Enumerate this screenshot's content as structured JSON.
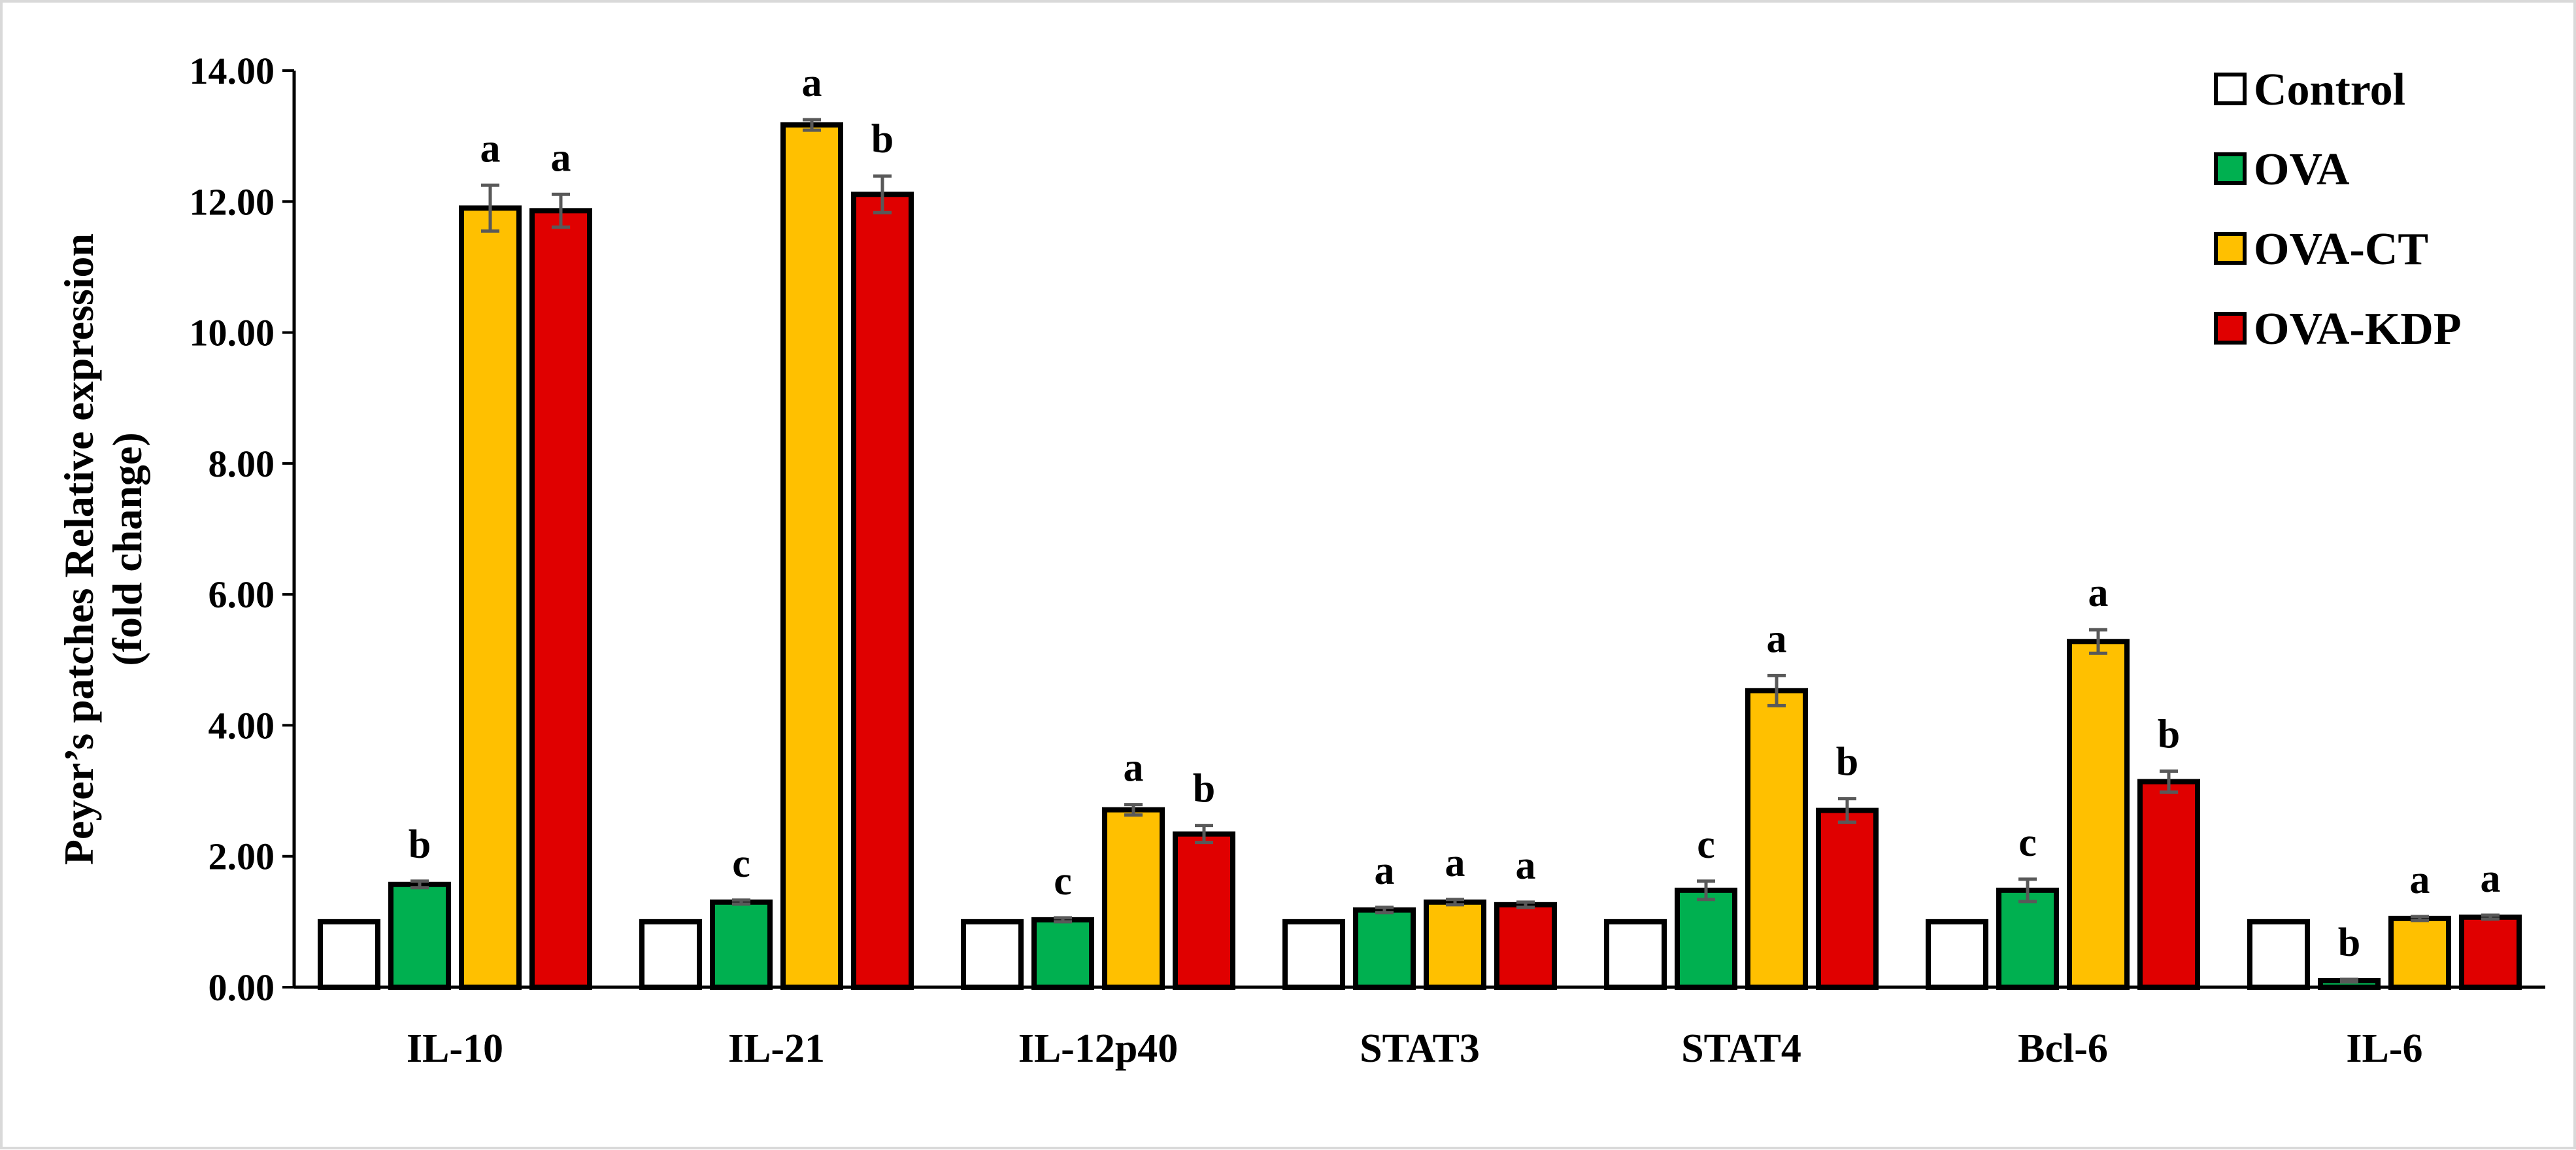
{
  "chart_data": {
    "type": "bar",
    "title": "",
    "xlabel": "",
    "ylabel_line1": "Peyer’s patches Relative expression",
    "ylabel_line2": "(fold change)",
    "ylim": [
      0,
      14
    ],
    "yticks": [
      0,
      2,
      4,
      6,
      8,
      10,
      12,
      14
    ],
    "ytick_labels": [
      "0.00",
      "2.00",
      "4.00",
      "6.00",
      "8.00",
      "10.00",
      "12.00",
      "14.00"
    ],
    "grid": false,
    "legend_position": "top-right",
    "categories": [
      "IL-10",
      "IL-21",
      "IL-12p40",
      "STAT3",
      "STAT4",
      "Bcl-6",
      "IL-6"
    ],
    "series": [
      {
        "name": "Control",
        "color": "#ffffff",
        "values": [
          1.0,
          1.0,
          1.0,
          1.0,
          1.0,
          1.0,
          1.0
        ],
        "errors": [
          0,
          0,
          0,
          0,
          0,
          0,
          0
        ],
        "labels": [
          "",
          "",
          "",
          "",
          "",
          "",
          ""
        ]
      },
      {
        "name": "OVA",
        "color": "#00b050",
        "values": [
          1.57,
          1.3,
          1.03,
          1.18,
          1.48,
          1.48,
          0.1
        ],
        "errors": [
          0.05,
          0.03,
          0.03,
          0.04,
          0.14,
          0.17,
          0.02
        ],
        "labels": [
          "b",
          "c",
          "c",
          "a",
          "c",
          "c",
          "b"
        ]
      },
      {
        "name": "OVA-CT",
        "color": "#ffc000",
        "values": [
          11.9,
          13.17,
          2.71,
          1.3,
          4.53,
          5.28,
          1.05
        ],
        "errors": [
          0.35,
          0.08,
          0.08,
          0.04,
          0.23,
          0.18,
          0.03
        ],
        "labels": [
          "a",
          "a",
          "a",
          "a",
          "a",
          "a",
          "a"
        ]
      },
      {
        "name": "OVA-KDP",
        "color": "#e00000",
        "values": [
          11.86,
          12.11,
          2.34,
          1.26,
          2.7,
          3.14,
          1.07
        ],
        "errors": [
          0.25,
          0.28,
          0.13,
          0.04,
          0.18,
          0.16,
          0.03
        ],
        "labels": [
          "a",
          "b",
          "b",
          "a",
          "b",
          "b",
          "a"
        ]
      }
    ]
  }
}
